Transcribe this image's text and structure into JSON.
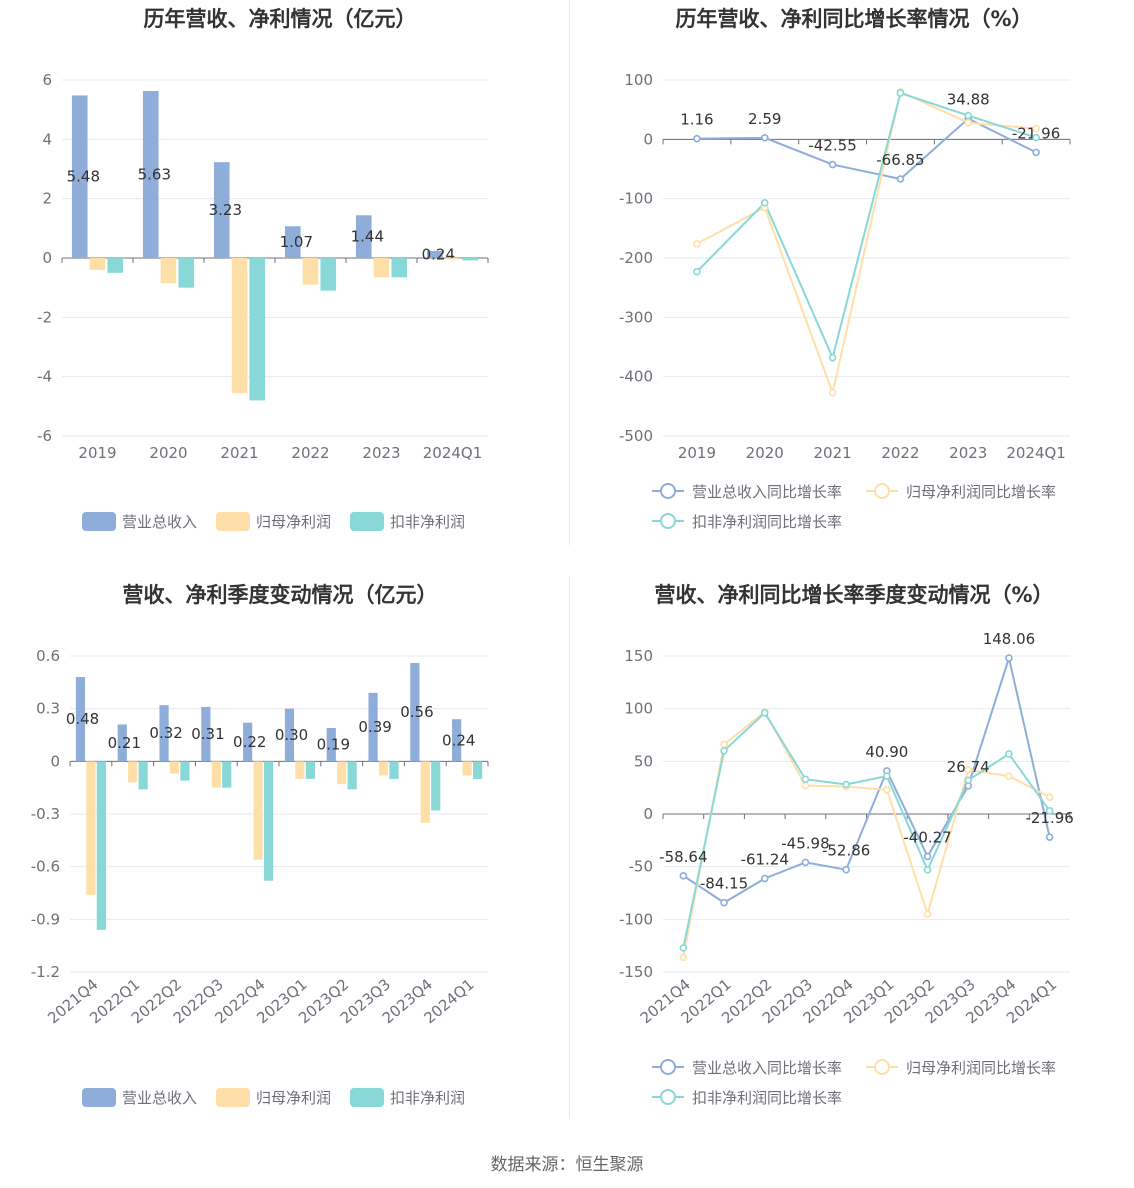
{
  "colors": {
    "revenue": "#8eadd9",
    "net_profit": "#ffdfa8",
    "deducted_profit": "#88d8d8",
    "grid": "#e6e9f0",
    "axis_text": "#6e7079",
    "label_text": "#333333",
    "title_text": "#333333"
  },
  "legend": {
    "bar": [
      "营业总收入",
      "归母净利润",
      "扣非净利润"
    ],
    "line": [
      "营业总收入同比增长率",
      "归母净利润同比增长率",
      "扣非净利润同比增长率"
    ]
  },
  "source": "数据来源：恒生聚源",
  "chart_data": [
    {
      "id": "annual_bar",
      "type": "bar",
      "title": "历年营收、净利情况（亿元）",
      "categories": [
        "2019",
        "2020",
        "2021",
        "2022",
        "2023",
        "2024Q1"
      ],
      "ylim": [
        -6,
        6
      ],
      "yticks": [
        -6,
        -4,
        -2,
        0,
        2,
        4,
        6
      ],
      "ytick_labels": [
        "-6",
        "-4",
        "-2",
        "0",
        "2",
        "4",
        "6"
      ],
      "grid": true,
      "legend_position": "bottom",
      "series": [
        {
          "name": "营业总收入",
          "values": [
            5.48,
            5.63,
            3.23,
            1.07,
            1.44,
            0.24
          ],
          "labels": [
            "5.48",
            "5.63",
            "3.23",
            "1.07",
            "1.44",
            "0.24"
          ]
        },
        {
          "name": "归母净利润",
          "values": [
            -0.4,
            -0.85,
            -4.55,
            -0.9,
            -0.65,
            -0.05
          ]
        },
        {
          "name": "扣非净利润",
          "values": [
            -0.5,
            -1.0,
            -4.8,
            -1.1,
            -0.65,
            -0.08
          ]
        }
      ]
    },
    {
      "id": "annual_line",
      "type": "line",
      "title": "历年营收、净利同比增长率情况（%）",
      "categories": [
        "2019",
        "2020",
        "2021",
        "2022",
        "2023",
        "2024Q1"
      ],
      "ylim": [
        -500,
        100
      ],
      "yticks": [
        -500,
        -400,
        -300,
        -200,
        -100,
        0,
        100
      ],
      "ytick_labels": [
        "-500",
        "-400",
        "-300",
        "-200",
        "-100",
        "0",
        "100"
      ],
      "grid": true,
      "legend_position": "bottom",
      "series": [
        {
          "name": "营业总收入同比增长率",
          "values": [
            1.16,
            2.59,
            -42.55,
            -66.85,
            34.88,
            -21.96
          ],
          "labels": [
            "1.16",
            "2.59",
            "-42.55",
            "-66.85",
            "34.88",
            "-21.96"
          ]
        },
        {
          "name": "归母净利润同比增长率",
          "values": [
            -176,
            -115,
            -427,
            80,
            28,
            18
          ]
        },
        {
          "name": "扣非净利润同比增长率",
          "values": [
            -223,
            -107,
            -368,
            78,
            40,
            3
          ]
        }
      ]
    },
    {
      "id": "quarterly_bar",
      "type": "bar",
      "title": "营收、净利季度变动情况（亿元）",
      "categories": [
        "2021Q4",
        "2022Q1",
        "2022Q2",
        "2022Q3",
        "2022Q4",
        "2023Q1",
        "2023Q2",
        "2023Q3",
        "2023Q4",
        "2024Q1"
      ],
      "ylim": [
        -1.2,
        0.6
      ],
      "yticks": [
        -1.2,
        -0.9,
        -0.6,
        -0.3,
        0,
        0.3,
        0.6
      ],
      "ytick_labels": [
        "-1.2",
        "-0.9",
        "-0.6",
        "-0.3",
        "0",
        "0.3",
        "0.6"
      ],
      "grid": true,
      "legend_position": "bottom",
      "series": [
        {
          "name": "营业总收入",
          "values": [
            0.48,
            0.21,
            0.32,
            0.31,
            0.22,
            0.3,
            0.19,
            0.39,
            0.56,
            0.24
          ],
          "labels": [
            "0.48",
            "0.21",
            "0.32",
            "0.31",
            "0.22",
            "0.30",
            "0.19",
            "0.39",
            "0.56",
            "0.24"
          ]
        },
        {
          "name": "归母净利润",
          "values": [
            -0.76,
            -0.12,
            -0.07,
            -0.15,
            -0.56,
            -0.1,
            -0.13,
            -0.08,
            -0.35,
            -0.08
          ]
        },
        {
          "name": "扣非净利润",
          "values": [
            -0.96,
            -0.16,
            -0.11,
            -0.15,
            -0.68,
            -0.1,
            -0.16,
            -0.1,
            -0.28,
            -0.1
          ]
        }
      ]
    },
    {
      "id": "quarterly_line",
      "type": "line",
      "title": "营收、净利同比增长率季度变动情况（%）",
      "categories": [
        "2021Q4",
        "2022Q1",
        "2022Q2",
        "2022Q3",
        "2022Q4",
        "2023Q1",
        "2023Q2",
        "2023Q3",
        "2023Q4",
        "2024Q1"
      ],
      "ylim": [
        -150,
        150
      ],
      "yticks": [
        -150,
        -100,
        -50,
        0,
        50,
        100,
        150
      ],
      "ytick_labels": [
        "-150",
        "-100",
        "-50",
        "0",
        "50",
        "100",
        "150"
      ],
      "grid": true,
      "legend_position": "bottom",
      "series": [
        {
          "name": "营业总收入同比增长率",
          "values": [
            -58.64,
            -84.15,
            -61.24,
            -45.98,
            -52.86,
            40.9,
            -40.27,
            26.74,
            148.06,
            -21.96
          ],
          "labels": [
            "-58.64",
            "-84.15",
            "-61.24",
            "-45.98",
            "-52.86",
            "40.90",
            "-40.27",
            "26.74",
            "148.06",
            "-21.96"
          ]
        },
        {
          "name": "归母净利润同比增长率",
          "values": [
            -136,
            66,
            97,
            27,
            26,
            23,
            -95,
            42,
            36,
            16
          ]
        },
        {
          "name": "扣非净利润同比增长率",
          "values": [
            -127,
            60,
            96,
            33,
            28,
            36,
            -53,
            32,
            57,
            3
          ]
        }
      ]
    }
  ]
}
